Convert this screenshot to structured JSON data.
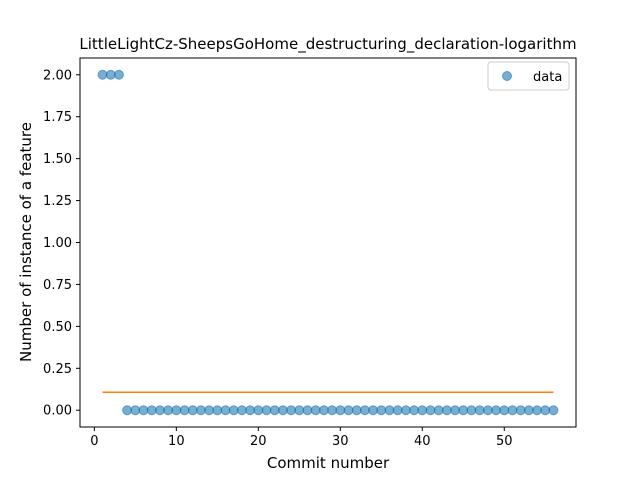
{
  "chart_data": {
    "type": "scatter",
    "title": "LittleLightCz-SheepsGoHome_destructuring_declaration-logarithm",
    "xlabel": "Commit number",
    "ylabel": "Number of instance of a feature",
    "xlim": [
      -1.75,
      58.75
    ],
    "ylim": [
      -0.1,
      2.1
    ],
    "xticks": [
      0,
      10,
      20,
      30,
      40,
      50
    ],
    "yticks": [
      0.0,
      0.25,
      0.5,
      0.75,
      1.0,
      1.25,
      1.5,
      1.75,
      2.0
    ],
    "ytick_labels": [
      "0.00",
      "0.25",
      "0.50",
      "0.75",
      "1.00",
      "1.25",
      "1.50",
      "1.75",
      "2.00"
    ],
    "grid": false,
    "legend_position": "top-right",
    "series": [
      {
        "name": "data",
        "kind": "scatter",
        "color": "#1f77b4",
        "x": [
          1,
          2,
          3,
          4,
          5,
          6,
          7,
          8,
          9,
          10,
          11,
          12,
          13,
          14,
          15,
          16,
          17,
          18,
          19,
          20,
          21,
          22,
          23,
          24,
          25,
          26,
          27,
          28,
          29,
          30,
          31,
          32,
          33,
          34,
          35,
          36,
          37,
          38,
          39,
          40,
          41,
          42,
          43,
          44,
          45,
          46,
          47,
          48,
          49,
          50,
          51,
          52,
          53,
          54,
          55,
          56
        ],
        "y": [
          2,
          2,
          2,
          0,
          0,
          0,
          0,
          0,
          0,
          0,
          0,
          0,
          0,
          0,
          0,
          0,
          0,
          0,
          0,
          0,
          0,
          0,
          0,
          0,
          0,
          0,
          0,
          0,
          0,
          0,
          0,
          0,
          0,
          0,
          0,
          0,
          0,
          0,
          0,
          0,
          0,
          0,
          0,
          0,
          0,
          0,
          0,
          0,
          0,
          0,
          0,
          0,
          0,
          0,
          0,
          0
        ]
      },
      {
        "kind": "line",
        "color": "#ff7f0e",
        "x": [
          1,
          56
        ],
        "y": [
          0.107,
          0.107
        ]
      }
    ]
  }
}
